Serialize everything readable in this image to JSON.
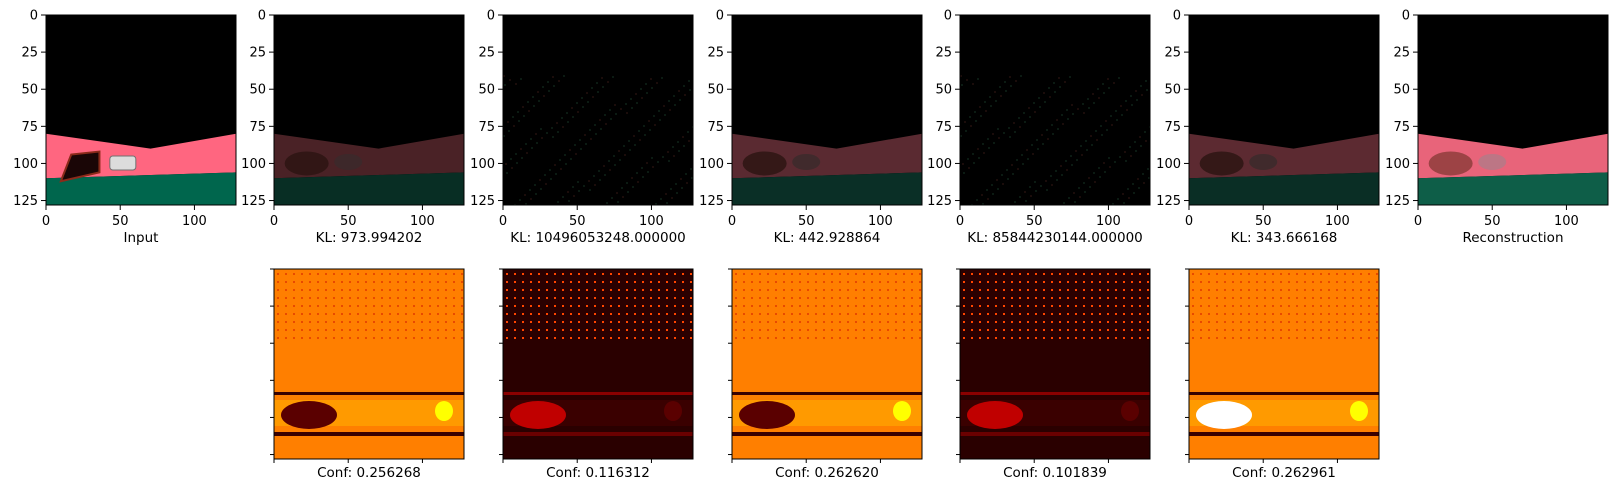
{
  "top_panels": [
    {
      "caption": "Input",
      "scene": "input"
    },
    {
      "caption": "KL: 973.994202",
      "scene": "dim1"
    },
    {
      "caption": "KL: 10496053248.000000",
      "scene": "dark"
    },
    {
      "caption": "KL: 442.928864",
      "scene": "dim2"
    },
    {
      "caption": "KL: 85844230144.000000",
      "scene": "dark"
    },
    {
      "caption": "KL: 343.666168",
      "scene": "dim3"
    },
    {
      "caption": "Reconstruction",
      "scene": "recon"
    }
  ],
  "bottom_panels": [
    {
      "caption": "Conf: 0.256268",
      "variant": "bright"
    },
    {
      "caption": "Conf: 0.116312",
      "variant": "dark"
    },
    {
      "caption": "Conf: 0.262620",
      "variant": "bright"
    },
    {
      "caption": "Conf: 0.101839",
      "variant": "dark"
    },
    {
      "caption": "Conf: 0.262961",
      "variant": "bright"
    }
  ],
  "axes": {
    "xticks": [
      "0",
      "50",
      "100"
    ],
    "yticks": [
      "0",
      "25",
      "50",
      "75",
      "100",
      "125"
    ],
    "xlim": [
      0,
      128
    ],
    "ylim": [
      128,
      0
    ]
  },
  "colors": {
    "sky": "#000000",
    "road": "#ff6680",
    "ground": "#00664d",
    "heat_dark": "#2a0000",
    "heat_mid": "#ff7f00",
    "heat_hot": "#ffff00"
  },
  "chart_data": [
    {
      "type": "image",
      "caption": "Input",
      "xlim": [
        0,
        128
      ],
      "ylim": [
        128,
        0
      ]
    },
    {
      "type": "image",
      "caption": "KL: 973.994202",
      "xlim": [
        0,
        128
      ],
      "ylim": [
        128,
        0
      ]
    },
    {
      "type": "image",
      "caption": "KL: 10496053248.000000",
      "xlim": [
        0,
        128
      ],
      "ylim": [
        128,
        0
      ]
    },
    {
      "type": "image",
      "caption": "KL: 442.928864",
      "xlim": [
        0,
        128
      ],
      "ylim": [
        128,
        0
      ]
    },
    {
      "type": "image",
      "caption": "KL: 85844230144.000000",
      "xlim": [
        0,
        128
      ],
      "ylim": [
        128,
        0
      ]
    },
    {
      "type": "image",
      "caption": "KL: 343.666168",
      "xlim": [
        0,
        128
      ],
      "ylim": [
        128,
        0
      ]
    },
    {
      "type": "image",
      "caption": "Reconstruction",
      "xlim": [
        0,
        128
      ],
      "ylim": [
        128,
        0
      ]
    },
    {
      "type": "heatmap",
      "caption": "Conf: 0.256268"
    },
    {
      "type": "heatmap",
      "caption": "Conf: 0.116312"
    },
    {
      "type": "heatmap",
      "caption": "Conf: 0.262620"
    },
    {
      "type": "heatmap",
      "caption": "Conf: 0.101839"
    },
    {
      "type": "heatmap",
      "caption": "Conf: 0.262961"
    }
  ]
}
